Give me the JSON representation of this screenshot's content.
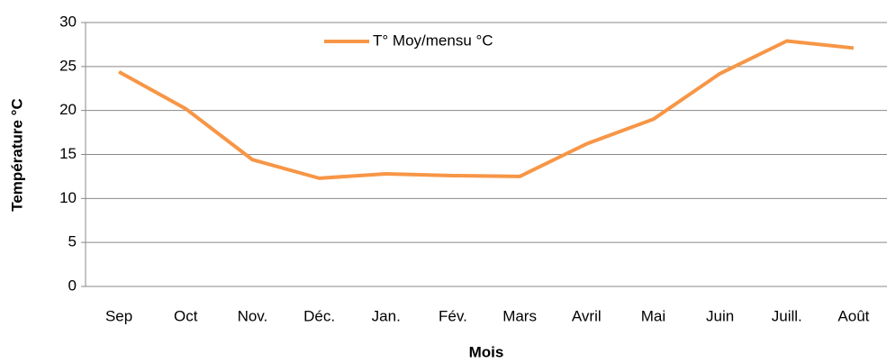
{
  "chart_data": {
    "type": "line",
    "x_label": "Mois",
    "y_label": "Température °C",
    "categories": [
      "Sep",
      "Oct",
      "Nov.",
      "Déc.",
      "Jan.",
      "Fév.",
      "Mars",
      "Avril",
      "Mai",
      "Juin",
      "Juill.",
      "Août"
    ],
    "series": [
      {
        "name": "T° Moy/mensu °C",
        "color": "#f79646",
        "values": [
          24.4,
          20.2,
          14.4,
          12.3,
          12.8,
          12.6,
          12.5,
          16.2,
          19.0,
          24.2,
          27.9,
          27.1
        ]
      }
    ],
    "ylim": [
      0,
      30
    ],
    "yticks": [
      0,
      5,
      10,
      15,
      20,
      25,
      30
    ],
    "grid": true,
    "legend": "top"
  }
}
